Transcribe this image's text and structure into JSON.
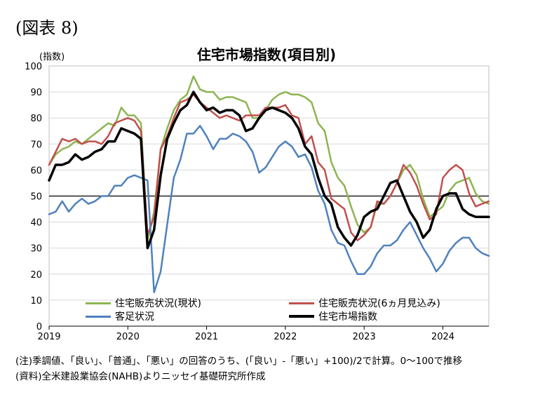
{
  "figure_label": "(図表 8)",
  "note": "(注)季調値、「良い」、「普通」、「悪い」の回答のうち、(「良い」-「悪い」+100)/2で計算。0～100で推移",
  "source": "(資料)全米建設業協会(NAHB)よりニッセイ基礎研究所作成",
  "chart_data": {
    "type": "line",
    "title": "住宅市場指数(項目別)",
    "ylabel": "(指数)",
    "xlabel": "",
    "ylim": [
      0,
      100
    ],
    "yticks": [
      0,
      10,
      20,
      30,
      40,
      50,
      60,
      70,
      80,
      90,
      100
    ],
    "x_start": "2019-01",
    "x_end": "2024-08",
    "xtick_labels": [
      "2019",
      "2020",
      "2021",
      "2022",
      "2023",
      "2024"
    ],
    "reference_line": 50,
    "grid": "horizontal",
    "legend_position": "bottom, inside",
    "series": [
      {
        "name": "住宅販売状況(現状)",
        "color": "#8db550",
        "width": 2.5,
        "values": [
          62,
          66,
          68,
          69,
          71,
          70,
          72,
          74,
          76,
          78,
          77,
          84,
          81,
          81,
          78,
          33,
          44,
          68,
          76,
          83,
          87,
          89,
          96,
          91,
          90,
          90,
          87,
          88,
          88,
          87,
          86,
          80,
          80,
          83,
          87,
          89,
          90,
          89,
          89,
          88,
          86,
          78,
          75,
          63,
          57,
          54,
          46,
          39,
          36,
          38,
          47,
          47,
          50,
          55,
          60,
          62,
          58,
          49,
          42,
          44,
          46,
          52,
          55,
          56,
          57,
          51,
          48,
          47
        ]
      },
      {
        "name": "住宅販売状況(6ヵ月見込み)",
        "color": "#c0504d",
        "width": 2.5,
        "values": [
          62,
          67,
          72,
          71,
          72,
          70,
          71,
          71,
          70,
          73,
          78,
          79,
          80,
          79,
          75,
          35,
          42,
          68,
          73,
          80,
          86,
          87,
          89,
          86,
          84,
          82,
          80,
          81,
          80,
          79,
          81,
          81,
          81,
          84,
          84,
          84,
          85,
          81,
          80,
          70,
          73,
          63,
          60,
          49,
          47,
          45,
          36,
          33,
          35,
          38,
          48,
          47,
          50,
          55,
          62,
          59,
          54,
          47,
          41,
          43,
          57,
          60,
          62,
          60,
          51,
          46,
          47,
          48
        ]
      },
      {
        "name": "客足状況",
        "color": "#4f81bd",
        "width": 2.5,
        "values": [
          43,
          44,
          48,
          44,
          47,
          49,
          47,
          48,
          50,
          50,
          54,
          54,
          57,
          58,
          57,
          56,
          13,
          21,
          39,
          57,
          64,
          74,
          74,
          77,
          73,
          68,
          72,
          72,
          74,
          73,
          71,
          67,
          59,
          61,
          65,
          69,
          71,
          69,
          65,
          66,
          61,
          52,
          47,
          37,
          32,
          31,
          25,
          20,
          20,
          23,
          28,
          31,
          31,
          33,
          37,
          40,
          35,
          30,
          26,
          21,
          24,
          29,
          32,
          34,
          34,
          30,
          28,
          27
        ]
      },
      {
        "name": "住宅市場指数",
        "color": "#000000",
        "width": 3.5,
        "values": [
          56,
          62,
          62,
          63,
          66,
          64,
          65,
          67,
          68,
          71,
          71,
          76,
          75,
          74,
          72,
          30,
          37,
          58,
          72,
          78,
          83,
          85,
          90,
          86,
          83,
          84,
          82,
          83,
          83,
          81,
          75,
          76,
          80,
          83,
          84,
          83,
          82,
          80,
          76,
          69,
          66,
          57,
          50,
          47,
          38,
          34,
          31,
          35,
          42,
          44,
          45,
          50,
          55,
          56,
          50,
          44,
          40,
          34,
          37,
          45,
          50,
          51,
          51,
          45,
          43,
          42,
          42,
          42
        ]
      }
    ]
  }
}
